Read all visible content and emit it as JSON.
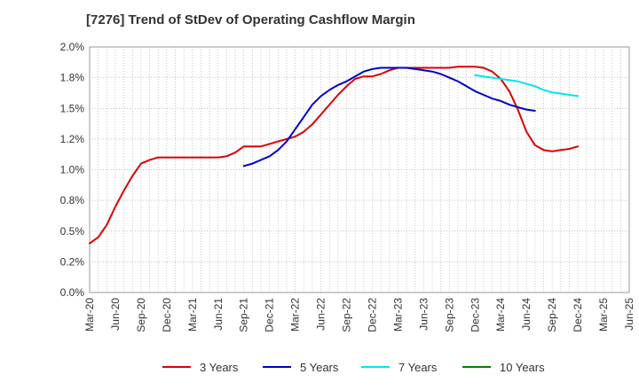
{
  "chart_data": {
    "type": "line",
    "title": "[7276]  Trend of StDev of Operating Cashflow Margin",
    "xlabel": "",
    "ylabel": "",
    "y_unit": "%",
    "ylim": [
      0,
      2.0
    ],
    "y_ticks": [
      0.0,
      0.25,
      0.5,
      0.75,
      1.0,
      1.25,
      1.5,
      1.75,
      2.0
    ],
    "y_tick_labels": [
      "0.0%",
      "0.2%",
      "0.5%",
      "0.8%",
      "1.0%",
      "1.2%",
      "1.5%",
      "1.8%",
      "2.0%"
    ],
    "x_tick_labels": [
      "Mar-20",
      "Jun-20",
      "Sep-20",
      "Dec-20",
      "Mar-21",
      "Jun-21",
      "Sep-21",
      "Dec-21",
      "Mar-22",
      "Jun-22",
      "Sep-22",
      "Dec-22",
      "Mar-23",
      "Jun-23",
      "Sep-23",
      "Dec-23",
      "Mar-24",
      "Jun-24",
      "Sep-24",
      "Dec-24",
      "Mar-25",
      "Jun-25"
    ],
    "grid": true,
    "legend_position": "bottom",
    "series": [
      {
        "name": "3 Years",
        "color": "#dd0000",
        "start_index": 0,
        "values": [
          0.4,
          0.45,
          0.55,
          0.7,
          0.83,
          0.95,
          1.05,
          1.08,
          1.1,
          1.1,
          1.1,
          1.1,
          1.1,
          1.1,
          1.1,
          1.1,
          1.11,
          1.14,
          1.19,
          1.19,
          1.19,
          1.21,
          1.23,
          1.25,
          1.27,
          1.31,
          1.37,
          1.45,
          1.53,
          1.61,
          1.68,
          1.74,
          1.76,
          1.76,
          1.78,
          1.81,
          1.83,
          1.83,
          1.83,
          1.83,
          1.83,
          1.83,
          1.83,
          1.84,
          1.84,
          1.84,
          1.83,
          1.8,
          1.74,
          1.64,
          1.49,
          1.31,
          1.2,
          1.16,
          1.15,
          1.16,
          1.17,
          1.19
        ]
      },
      {
        "name": "5 Years",
        "color": "#0000cc",
        "start_index": 18,
        "values": [
          1.03,
          1.05,
          1.08,
          1.11,
          1.16,
          1.23,
          1.33,
          1.43,
          1.53,
          1.6,
          1.65,
          1.69,
          1.72,
          1.76,
          1.8,
          1.82,
          1.83,
          1.83,
          1.83,
          1.83,
          1.82,
          1.81,
          1.8,
          1.78,
          1.75,
          1.72,
          1.68,
          1.64,
          1.61,
          1.58,
          1.56,
          1.53,
          1.51,
          1.49,
          1.48
        ]
      },
      {
        "name": "7 Years",
        "color": "#00e5ee",
        "start_index": 45,
        "values": [
          1.77,
          1.76,
          1.75,
          1.74,
          1.73,
          1.72,
          1.7,
          1.68,
          1.65,
          1.63,
          1.62,
          1.61,
          1.6
        ]
      },
      {
        "name": "10 Years",
        "color": "#008000",
        "start_index": 0,
        "values": []
      }
    ]
  }
}
